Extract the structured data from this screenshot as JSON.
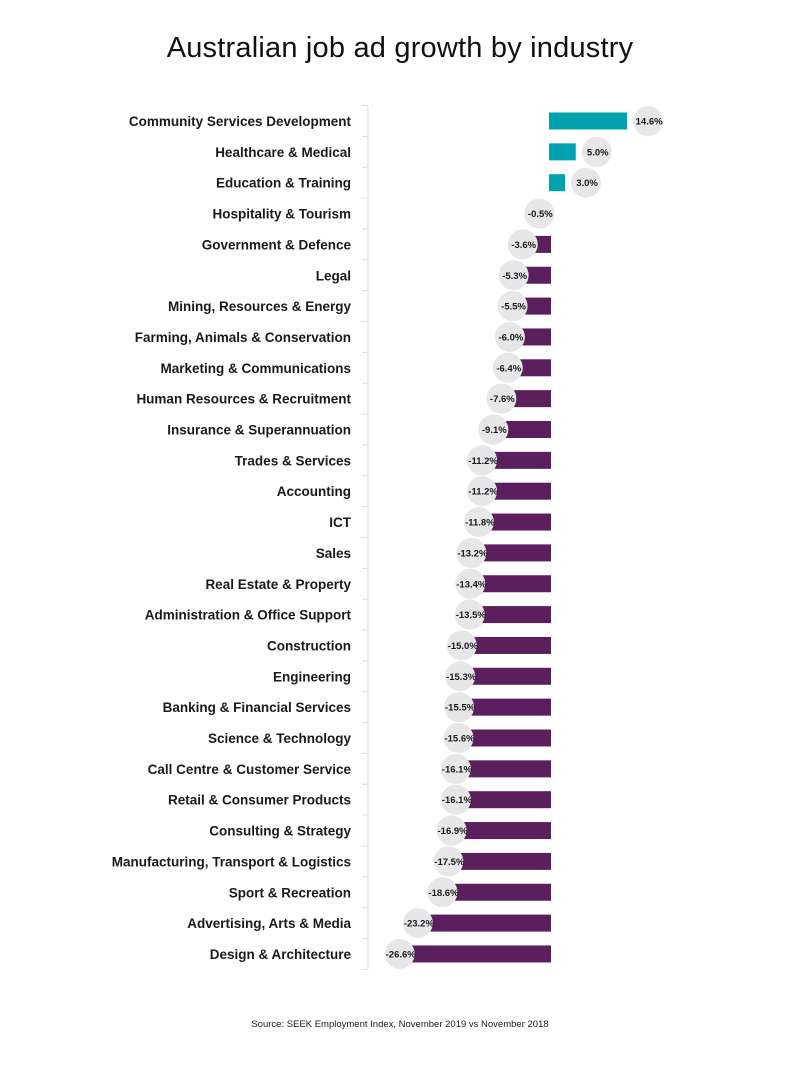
{
  "colors": {
    "positive": "#00a3ad",
    "negative": "#5b1f5e",
    "bubble": "#e7e6e8",
    "separator": "#dddddd"
  },
  "footer": {
    "source": "Source: SEEK Employment Index, November 2019 vs November 2018"
  },
  "chart_data": {
    "type": "bar",
    "orientation": "horizontal",
    "title": "Australian job ad growth by industry",
    "xlabel": "",
    "ylabel": "",
    "unit": "%",
    "xlim": [
      -26.6,
      14.6
    ],
    "grid": false,
    "categories": [
      "Community Services  Development",
      "Healthcare & Medical",
      "Education & Training",
      "Hospitality & Tourism",
      "Government & Defence",
      "Legal",
      "Mining, Resources & Energy",
      "Farming, Animals & Conservation",
      "Marketing & Communications",
      "Human Resources & Recruitment",
      "Insurance & Superannuation",
      "Trades & Services",
      "Accounting",
      "ICT",
      "Sales",
      "Real Estate & Property",
      "Administration & Office Support",
      "Construction",
      "Engineering",
      "Banking & Financial Services",
      "Science & Technology",
      "Call Centre & Customer Service",
      "Retail & Consumer Products",
      "Consulting & Strategy",
      "Manufacturing, Transport & Logistics",
      "Sport & Recreation",
      "Advertising, Arts & Media",
      "Design & Architecture"
    ],
    "values": [
      14.6,
      5.0,
      3.0,
      -0.5,
      -3.6,
      -5.3,
      -5.5,
      -6.0,
      -6.4,
      -7.6,
      -9.1,
      -11.2,
      -11.2,
      -11.8,
      -13.2,
      -13.4,
      -13.5,
      -15.0,
      -15.3,
      -15.5,
      -15.6,
      -16.1,
      -16.1,
      -16.9,
      -17.5,
      -18.6,
      -23.2,
      -26.6
    ],
    "value_labels": [
      "14.6%",
      "5.0%",
      "3.0%",
      "-0.5%",
      "-3.6%",
      "-5.3%",
      "-5.5%",
      "-6.0%",
      "-6.4%",
      "-7.6%",
      "-9.1%",
      "-11.2%",
      "-11.2%",
      "-11.8%",
      "-13.2%",
      "-13.4%",
      "-13.5%",
      "-15.0%",
      "-15.3%",
      "-15.5%",
      "-15.6%",
      "-16.1%",
      "-16.1%",
      "-16.9%",
      "-17.5%",
      "-18.6%",
      "-23.2%",
      "-26.6%"
    ]
  }
}
